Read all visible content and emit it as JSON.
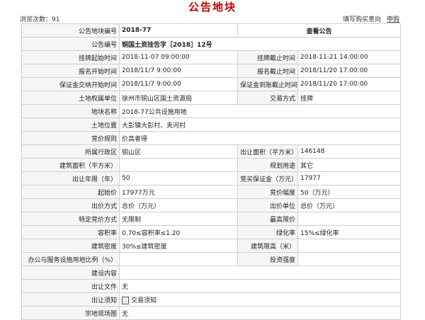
{
  "header": {
    "title": "公告地块",
    "views": "浏览次数：91",
    "actions": [
      "填写购买意向",
      "申购"
    ]
  },
  "table": {
    "rows": [
      {
        "label": "公告地块编号",
        "value": "2018-77",
        "link": "查看公告"
      },
      {
        "label": "公告编号",
        "value": "铜国土资挂告字［2018］12号"
      },
      {
        "label": "挂牌起始时间",
        "value": "2018-11-07 09:00:00",
        "label2": "挂牌截止时间",
        "value2": "2018-11-21 14:00:00"
      },
      {
        "label": "报名开始时间",
        "value": "2018/11/7 9:00:00",
        "label2": "报名截止时间",
        "value2": "2018/11/20 17:00:00"
      },
      {
        "label": "保证金交纳开始时间",
        "value": "2018/11/7 9:00:00",
        "label2": "保证金到账截止时间",
        "value2": "2018/11/20 17:00:00"
      },
      {
        "label": "土地权属单位",
        "value": "徐州市铜山区国土资源局",
        "label2": "交易方式",
        "value2": "挂牌"
      },
      {
        "label": "地块名称",
        "value": "2018-77公共设施用地"
      },
      {
        "label": "土地位置",
        "value": "大彭镇大彭村、夹河村"
      },
      {
        "label": "竞价规则",
        "value": "价高者得"
      },
      {
        "label": "所属行政区",
        "value": "铜山区",
        "label2": "出让面积（平方米）",
        "value2": "146148"
      },
      {
        "label": "建筑面积（平方米）",
        "label2": "规划用途",
        "value2": "其它"
      },
      {
        "label": "出让年限（年）",
        "value": "50",
        "label2": "竞买保证金（万元）",
        "value2": "17977"
      },
      {
        "label": "起始价",
        "value": "17977万元",
        "label2": "竞价幅度",
        "value2": "50（万元）"
      },
      {
        "label": "出价方式",
        "value": "总价（万元）",
        "label2": "出价单位",
        "value2": "总价（万元）"
      },
      {
        "label": "特定竞价方式",
        "value": "无限制",
        "label2": "最高限价"
      },
      {
        "label": "容积率",
        "value": "0.70≤容积率≤1.20",
        "label2": "绿化率",
        "value2": "15%≤绿化率"
      },
      {
        "label": "建筑密度",
        "value": "30%≤建筑密度",
        "label2": "建筑限高（米）"
      },
      {
        "label": "办公与服务设施用地比例（%）",
        "label2": "投资强度"
      },
      {
        "label": "建设内容"
      },
      {
        "label": "出让文件",
        "value": "无"
      },
      {
        "label": "出让须知",
        "attachment": "交易须知"
      },
      {
        "label": "宗地现场图",
        "value": "无"
      }
    ]
  }
}
